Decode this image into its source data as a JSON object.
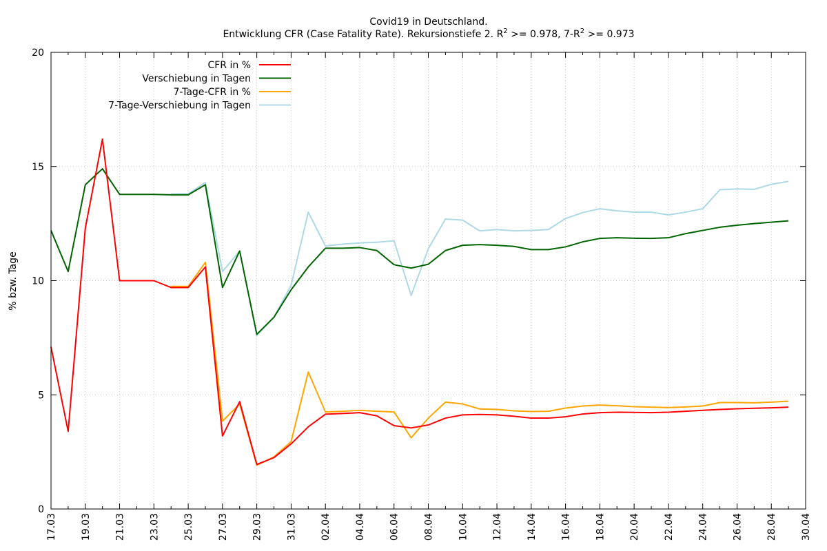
{
  "chart_data": {
    "type": "line",
    "title_line1": "Covid19 in Deutschland.",
    "title_line2_parts": [
      "Entwicklung CFR (Case Fatality Rate). Rekursionstiefe 2. R",
      "2",
      " >= 0.978, 7-R",
      "2",
      " >= 0.973"
    ],
    "ylabel": "% bzw. Tage",
    "ylim": [
      0,
      20
    ],
    "yticks": [
      "0",
      "5",
      "10",
      "15",
      "20"
    ],
    "xticks": [
      "17.03",
      "19.03",
      "21.03",
      "23.03",
      "25.03",
      "27.03",
      "29.03",
      "31.03",
      "02.04",
      "04.04",
      "06.04",
      "08.04",
      "10.04",
      "12.04",
      "14.04",
      "16.04",
      "18.04",
      "20.04",
      "22.04",
      "24.04",
      "26.04",
      "28.04",
      "30.04"
    ],
    "x": [
      "17.03",
      "18.03",
      "19.03",
      "20.03",
      "21.03",
      "22.03",
      "23.03",
      "24.03",
      "25.03",
      "26.03",
      "27.03",
      "28.03",
      "29.03",
      "30.03",
      "31.03",
      "01.04",
      "02.04",
      "03.04",
      "04.04",
      "05.04",
      "06.04",
      "07.04",
      "08.04",
      "09.04",
      "10.04",
      "11.04",
      "12.04",
      "13.04",
      "14.04",
      "15.04",
      "16.04",
      "17.04",
      "18.04",
      "19.04",
      "20.04",
      "21.04",
      "22.04",
      "23.04",
      "24.04",
      "25.04",
      "26.04",
      "27.04",
      "28.04",
      "29.04"
    ],
    "grid": true,
    "legend_position": "top-left",
    "series": [
      {
        "name": "CFR in %",
        "color": "#ff0000",
        "values": [
          7.1,
          3.4,
          12.3,
          16.2,
          10.0,
          10.0,
          10.0,
          9.7,
          9.7,
          10.6,
          3.2,
          4.7,
          1.95,
          2.25,
          2.85,
          3.6,
          4.15,
          4.18,
          4.22,
          4.08,
          3.65,
          3.55,
          3.68,
          3.98,
          4.12,
          4.14,
          4.12,
          4.06,
          3.98,
          3.98,
          4.04,
          4.16,
          4.22,
          4.24,
          4.23,
          4.22,
          4.24,
          4.28,
          4.32,
          4.36,
          4.39,
          4.41,
          4.43,
          4.46
        ]
      },
      {
        "name": "Verschiebung in Tagen",
        "color": "#006400",
        "values": [
          12.2,
          10.4,
          14.2,
          14.9,
          13.78,
          13.78,
          13.78,
          13.76,
          13.76,
          14.2,
          9.7,
          11.3,
          7.65,
          8.4,
          9.6,
          10.6,
          11.42,
          11.42,
          11.45,
          11.32,
          10.7,
          10.55,
          10.72,
          11.32,
          11.55,
          11.58,
          11.55,
          11.5,
          11.36,
          11.36,
          11.48,
          11.7,
          11.85,
          11.88,
          11.86,
          11.85,
          11.88,
          12.06,
          12.2,
          12.34,
          12.43,
          12.5,
          12.56,
          12.62
        ]
      },
      {
        "name": "7-Tage-CFR in %",
        "color": "#ffa500",
        "values": [
          null,
          null,
          null,
          null,
          null,
          null,
          null,
          9.75,
          9.75,
          10.8,
          3.85,
          4.6,
          1.92,
          2.28,
          2.95,
          6.0,
          4.25,
          4.28,
          4.32,
          4.28,
          4.25,
          3.12,
          3.98,
          4.68,
          4.6,
          4.38,
          4.36,
          4.3,
          4.27,
          4.28,
          4.42,
          4.51,
          4.55,
          4.52,
          4.48,
          4.46,
          4.44,
          4.47,
          4.51,
          4.66,
          4.66,
          4.65,
          4.68,
          4.72
        ]
      },
      {
        "name": "7-Tage-Verschiebung in Tagen",
        "color": "#add8e6",
        "values": [
          null,
          null,
          null,
          null,
          null,
          null,
          null,
          13.8,
          13.8,
          14.3,
          10.4,
          11.3,
          7.6,
          8.4,
          9.8,
          13.0,
          11.52,
          11.6,
          11.65,
          11.68,
          11.75,
          9.35,
          11.4,
          12.7,
          12.65,
          12.18,
          12.24,
          12.18,
          12.2,
          12.24,
          12.72,
          12.98,
          13.15,
          13.06,
          13.0,
          13.0,
          12.88,
          13.0,
          13.15,
          13.98,
          14.02,
          14.0,
          14.22,
          14.35
        ]
      }
    ]
  }
}
